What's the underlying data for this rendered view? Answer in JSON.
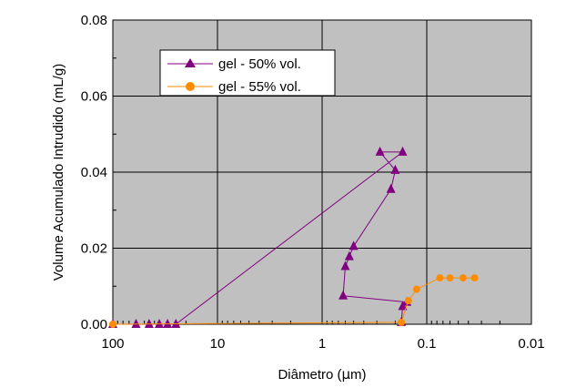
{
  "chart_data": {
    "type": "scatter",
    "title": "",
    "xlabel": "Diâmetro (",
    "xlabel_symbol": "μ",
    "xlabel_tail": "m)",
    "ylabel": "Volume Acumulado Intrudido (mL/g)",
    "x_scale": "log",
    "x_reversed": true,
    "xlim": [
      100,
      0.01
    ],
    "ylim": [
      0,
      0.08
    ],
    "grid": true,
    "legend_position": "top-left",
    "plot_background": "#c0c0c0",
    "x_ticks": [
      {
        "value": 100,
        "label": "100"
      },
      {
        "value": 10,
        "label": "10"
      },
      {
        "value": 1,
        "label": "1"
      },
      {
        "value": 0.1,
        "label": "0.1"
      },
      {
        "value": 0.01,
        "label": "0.01"
      }
    ],
    "y_ticks": [
      {
        "value": 0,
        "label": "0.00"
      },
      {
        "value": 0.02,
        "label": "0.02"
      },
      {
        "value": 0.04,
        "label": "0.04"
      },
      {
        "value": 0.06,
        "label": "0.06"
      },
      {
        "value": 0.08,
        "label": "0.08"
      }
    ],
    "series": [
      {
        "name": "gel - 50% vol.",
        "color": "#800080",
        "marker": "triangle",
        "points": [
          {
            "x": 100,
            "y": 0
          },
          {
            "x": 60,
            "y": 0
          },
          {
            "x": 45,
            "y": 0
          },
          {
            "x": 36,
            "y": 0
          },
          {
            "x": 30,
            "y": 0
          },
          {
            "x": 25,
            "y": 0
          },
          {
            "x": 0.17,
            "y": 0.0453
          },
          {
            "x": 0.28,
            "y": 0.0453
          },
          {
            "x": 0.2,
            "y": 0.0405
          },
          {
            "x": 0.22,
            "y": 0.0355
          },
          {
            "x": 0.5,
            "y": 0.0205
          },
          {
            "x": 0.55,
            "y": 0.0178
          },
          {
            "x": 0.6,
            "y": 0.0152
          },
          {
            "x": 0.63,
            "y": 0.0075
          },
          {
            "x": 0.155,
            "y": 0.0058
          },
          {
            "x": 0.17,
            "y": 0.0047
          },
          {
            "x": 0.175,
            "y": 0.0005
          }
        ]
      },
      {
        "name": "gel - 55% vol.",
        "color": "#ff8c00",
        "marker": "circle",
        "points": [
          {
            "x": 100,
            "y": 0
          },
          {
            "x": 0.175,
            "y": 0.0005
          },
          {
            "x": 0.15,
            "y": 0.0062
          },
          {
            "x": 0.125,
            "y": 0.0092
          },
          {
            "x": 0.075,
            "y": 0.0122
          },
          {
            "x": 0.06,
            "y": 0.0122
          },
          {
            "x": 0.045,
            "y": 0.0122
          },
          {
            "x": 0.035,
            "y": 0.0122
          }
        ]
      }
    ]
  }
}
